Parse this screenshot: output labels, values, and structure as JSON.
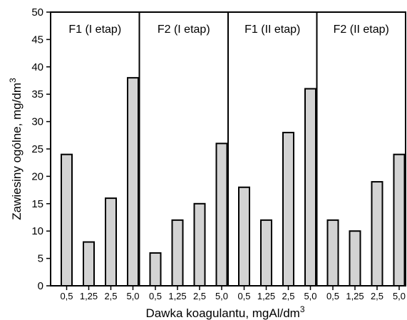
{
  "chart_data": {
    "type": "bar",
    "ylabel": "Zawiesiny ogólne, mg/dm",
    "ylabel_sup": "3",
    "xlabel": "Dawka koagulantu, mgAl/dm",
    "xlabel_sup": "3",
    "ylim": [
      0,
      50
    ],
    "yticks": [
      "0",
      "5",
      "10",
      "15",
      "20",
      "25",
      "30",
      "35",
      "40",
      "45",
      "50"
    ],
    "categories": [
      "0,5",
      "1,25",
      "2,5",
      "5,0"
    ],
    "grid": false,
    "bar_color": "#d3d3d3",
    "panels": [
      {
        "name": "F1 (I etap)",
        "values": [
          24,
          8,
          16,
          38
        ]
      },
      {
        "name": "F2 (I etap)",
        "values": [
          6,
          12,
          15,
          26
        ]
      },
      {
        "name": "F1 (II etap)",
        "values": [
          18,
          12,
          28,
          36
        ]
      },
      {
        "name": "F2 (II etap)",
        "values": [
          12,
          10,
          19,
          24
        ]
      }
    ]
  }
}
